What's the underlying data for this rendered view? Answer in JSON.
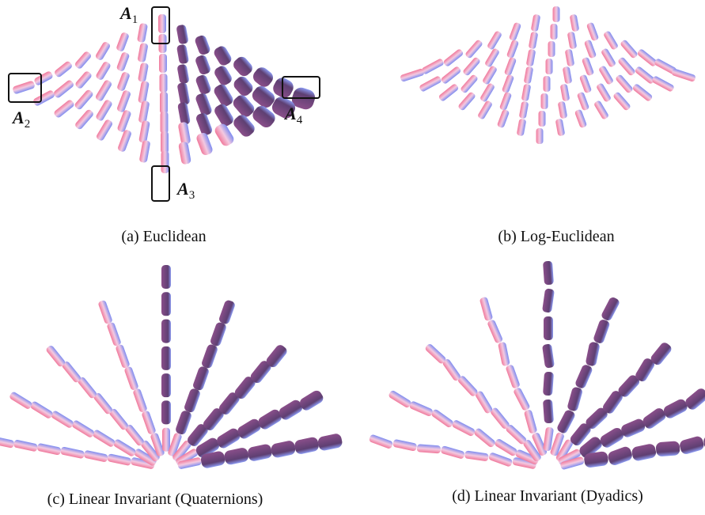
{
  "panels": [
    {
      "caption": "(a) Euclidean",
      "labels": [
        {
          "letter": "A",
          "index": "1"
        },
        {
          "letter": "A",
          "index": "2"
        },
        {
          "letter": "A",
          "index": "3"
        },
        {
          "letter": "A",
          "index": "4"
        }
      ]
    },
    {
      "caption": "(b) Log-Euclidean"
    },
    {
      "caption": "(c) Linear Invariant (Quaternions)"
    },
    {
      "caption": "(d) Linear Invariant (Dyadics)"
    }
  ]
}
